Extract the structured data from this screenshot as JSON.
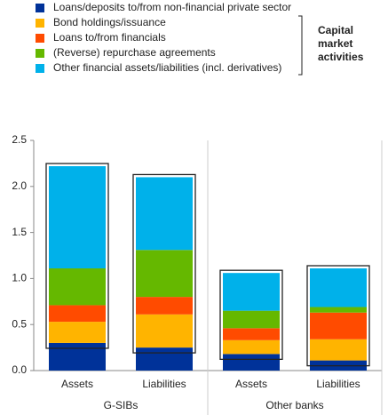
{
  "chart_data": {
    "type": "stacked_bar",
    "annotation": "Capital market activities",
    "categories": [
      "Assets",
      "Liabilities",
      "Assets",
      "Liabilities"
    ],
    "groups": [
      "G-SIBs",
      "Other banks"
    ],
    "series": [
      {
        "name": "Loans/deposits to/from non-financial private sector",
        "color": "#003299",
        "values": [
          0.3,
          0.25,
          0.18,
          0.11
        ]
      },
      {
        "name": "Bond holdings/issuance",
        "color": "#ffb400",
        "values": [
          0.23,
          0.36,
          0.15,
          0.23
        ]
      },
      {
        "name": "Loans to/from financials",
        "color": "#ff4b00",
        "values": [
          0.18,
          0.19,
          0.13,
          0.29
        ]
      },
      {
        "name": "(Reverse) repurchase agreements",
        "color": "#65b800",
        "values": [
          0.4,
          0.51,
          0.19,
          0.06
        ]
      },
      {
        "name": "Other financial assets/liabilities (incl. derivatives)",
        "color": "#00b1ea",
        "values": [
          1.11,
          0.79,
          0.41,
          0.42
        ]
      }
    ],
    "ylim": [
      0,
      2.5
    ],
    "yticks": [
      {
        "value": 0,
        "label": "0.0"
      },
      0.5,
      {
        "value": 1,
        "label": "1.0"
      },
      1.5,
      {
        "value": 2,
        "label": "2.0"
      },
      2.5
    ]
  }
}
